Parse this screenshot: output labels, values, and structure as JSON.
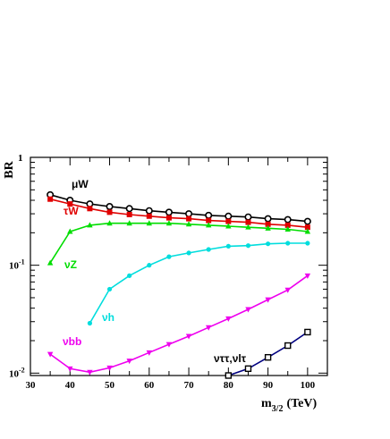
{
  "chart_data": {
    "type": "line",
    "title": "",
    "xlabel": "m",
    "xlabel_sub": "3/2",
    "xlabel_unit": "(TeV)",
    "ylabel": "BR",
    "xlim": [
      30,
      105
    ],
    "ylim": [
      0.0095,
      1
    ],
    "yscale": "log",
    "x_ticks": [
      30,
      40,
      50,
      60,
      70,
      80,
      90,
      100
    ],
    "x_tick_labels": [
      "30",
      "40",
      "50",
      "60",
      "70",
      "80",
      "90",
      "100"
    ],
    "y_ticks": [
      1,
      0.1,
      0.01
    ],
    "y_tick_labels": [
      {
        "base": "1",
        "exp": ""
      },
      {
        "base": "10",
        "exp": "-1"
      },
      {
        "base": "10",
        "exp": "-2"
      }
    ],
    "grid": false,
    "series": [
      {
        "name": "μW",
        "color": "#000000",
        "marker": "open-circle",
        "x": [
          35,
          40,
          45,
          50,
          55,
          60,
          65,
          70,
          75,
          80,
          85,
          90,
          95,
          100
        ],
        "values": [
          0.45,
          0.4,
          0.37,
          0.35,
          0.335,
          0.32,
          0.31,
          0.3,
          0.29,
          0.285,
          0.28,
          0.27,
          0.265,
          0.255
        ]
      },
      {
        "name": "τW",
        "color": "#e00000",
        "marker": "filled-square",
        "x": [
          35,
          40,
          45,
          50,
          55,
          60,
          65,
          70,
          75,
          80,
          85,
          90,
          95,
          100
        ],
        "values": [
          0.41,
          0.37,
          0.335,
          0.31,
          0.295,
          0.285,
          0.275,
          0.27,
          0.26,
          0.255,
          0.25,
          0.24,
          0.235,
          0.225
        ]
      },
      {
        "name": "νZ",
        "color": "#00dd00",
        "marker": "filled-triangle-up",
        "x": [
          35,
          40,
          45,
          50,
          55,
          60,
          65,
          70,
          75,
          80,
          85,
          90,
          95,
          100
        ],
        "values": [
          0.105,
          0.205,
          0.235,
          0.245,
          0.245,
          0.245,
          0.245,
          0.24,
          0.235,
          0.23,
          0.225,
          0.22,
          0.215,
          0.205
        ]
      },
      {
        "name": "νh",
        "color": "#00dddd",
        "marker": "filled-circle",
        "x": [
          45,
          50,
          55,
          60,
          65,
          70,
          75,
          80,
          85,
          90,
          95,
          100
        ],
        "values": [
          0.029,
          0.06,
          0.08,
          0.1,
          0.12,
          0.13,
          0.14,
          0.15,
          0.152,
          0.158,
          0.16,
          0.16
        ]
      },
      {
        "name": "νbb",
        "color": "#ee00ee",
        "marker": "filled-triangle-down",
        "x": [
          35,
          40,
          45,
          50,
          55,
          60,
          65,
          70,
          75,
          80,
          85,
          90,
          95,
          100
        ],
        "values": [
          0.015,
          0.011,
          0.0102,
          0.0112,
          0.013,
          0.0155,
          0.0185,
          0.022,
          0.0265,
          0.032,
          0.039,
          0.048,
          0.059,
          0.08
        ]
      },
      {
        "name": "νττ,νlτ",
        "color": "#000080",
        "marker": "open-square",
        "x": [
          80,
          85,
          90,
          95,
          100
        ],
        "values": [
          0.0095,
          0.011,
          0.014,
          0.018,
          0.024
        ]
      }
    ]
  },
  "labels": {
    "muW": "μW",
    "tauW": "τW",
    "nuZ": "νZ",
    "nuh": "νh",
    "nubb": "νbb",
    "nutautau": "νττ,νlτ"
  }
}
